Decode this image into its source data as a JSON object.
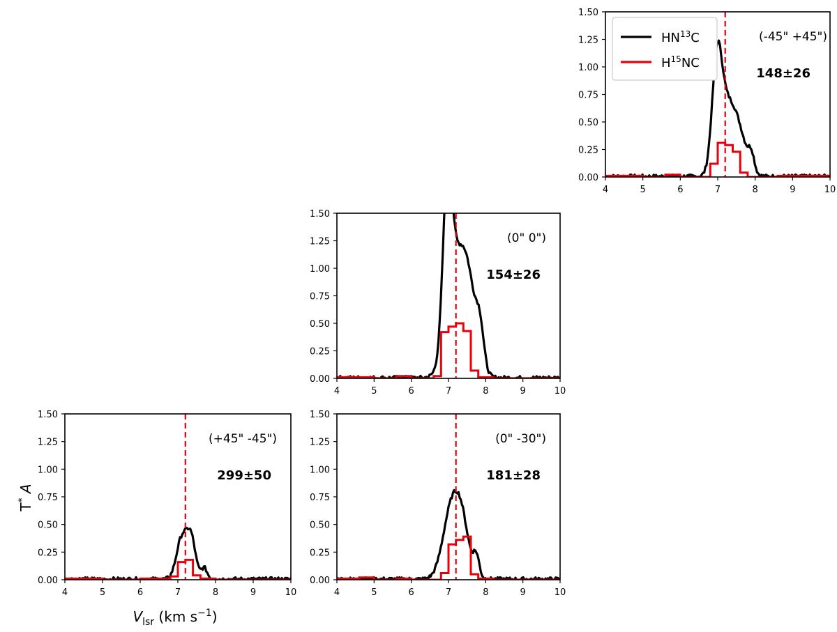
{
  "chart_data": {
    "type": "line",
    "ylabel": "T*A",
    "xlabel": "Vlsr (km s−1)",
    "xlim": [
      4,
      10
    ],
    "ylim": [
      0,
      1.5
    ],
    "xticks": [
      "4",
      "5",
      "6",
      "7",
      "8",
      "9",
      "10"
    ],
    "yticks": [
      "0.00",
      "0.25",
      "0.50",
      "0.75",
      "1.00",
      "1.25",
      "1.50"
    ],
    "legend": {
      "placement": "top-left of top-right panel",
      "entries": [
        {
          "name": "HN13C",
          "base": "HN",
          "sup": "13",
          "tail": "C",
          "color": "#000000"
        },
        {
          "name": "H15NC",
          "base": "H",
          "sup": "15",
          "tail": "NC",
          "color": "#e8000b"
        }
      ]
    },
    "vline_x": 7.2,
    "panels": [
      {
        "id": "top-right",
        "offset": "(-45\" +45\")",
        "ratio": "148±26",
        "show_legend": true,
        "hn13c_peaks": [
          [
            6.98,
            0.92,
            0.13
          ],
          [
            7.25,
            0.6,
            0.22
          ],
          [
            7.6,
            0.3,
            0.2
          ],
          [
            7.9,
            0.15,
            0.08
          ]
        ],
        "h15nc_channels": [
          [
            4.0,
            0.01
          ],
          [
            5.0,
            0.0
          ],
          [
            5.6,
            0.02
          ],
          [
            6.0,
            0.0
          ],
          [
            6.8,
            0.12
          ],
          [
            7.0,
            0.31
          ],
          [
            7.2,
            0.29
          ],
          [
            7.4,
            0.23
          ],
          [
            7.6,
            0.04
          ],
          [
            7.8,
            0.0
          ],
          [
            8.6,
            0.01
          ]
        ]
      },
      {
        "id": "middle",
        "offset": "(0\" 0\")",
        "ratio": "154±26",
        "show_legend": false,
        "hn13c_peaks": [
          [
            6.97,
            1.35,
            0.12
          ],
          [
            7.2,
            0.9,
            0.25
          ],
          [
            7.55,
            0.68,
            0.22
          ],
          [
            7.85,
            0.3,
            0.1
          ]
        ],
        "h15nc_channels": [
          [
            4.0,
            0.01
          ],
          [
            5.0,
            0.0
          ],
          [
            5.6,
            0.02
          ],
          [
            6.0,
            0.0
          ],
          [
            6.6,
            0.02
          ],
          [
            6.8,
            0.42
          ],
          [
            7.0,
            0.47
          ],
          [
            7.2,
            0.5
          ],
          [
            7.4,
            0.43
          ],
          [
            7.6,
            0.07
          ],
          [
            7.8,
            0.01
          ],
          [
            8.2,
            0.0
          ]
        ]
      },
      {
        "id": "bottom-left",
        "offset": "(+45\" -45\")",
        "ratio": "299±50",
        "show_legend": false,
        "hn13c_peaks": [
          [
            7.1,
            0.36,
            0.14
          ],
          [
            7.35,
            0.36,
            0.12
          ],
          [
            7.7,
            0.1,
            0.08
          ]
        ],
        "h15nc_channels": [
          [
            4.0,
            0.01
          ],
          [
            5.0,
            0.0
          ],
          [
            6.0,
            0.01
          ],
          [
            6.8,
            0.03
          ],
          [
            7.0,
            0.16
          ],
          [
            7.2,
            0.18
          ],
          [
            7.4,
            0.04
          ],
          [
            7.6,
            0.01
          ],
          [
            8.0,
            0.0
          ]
        ]
      },
      {
        "id": "bottom-middle",
        "offset": "(0\" -30\")",
        "ratio": "181±28",
        "show_legend": false,
        "hn13c_peaks": [
          [
            7.05,
            0.55,
            0.22
          ],
          [
            7.35,
            0.48,
            0.2
          ],
          [
            7.75,
            0.18,
            0.08
          ]
        ],
        "h15nc_channels": [
          [
            4.0,
            0.01
          ],
          [
            4.6,
            0.02
          ],
          [
            5.0,
            0.0
          ],
          [
            5.6,
            0.01
          ],
          [
            6.0,
            0.0
          ],
          [
            6.8,
            0.06
          ],
          [
            7.0,
            0.32
          ],
          [
            7.2,
            0.36
          ],
          [
            7.4,
            0.39
          ],
          [
            7.6,
            0.05
          ],
          [
            7.8,
            0.01
          ],
          [
            8.2,
            0.0
          ]
        ]
      }
    ]
  }
}
